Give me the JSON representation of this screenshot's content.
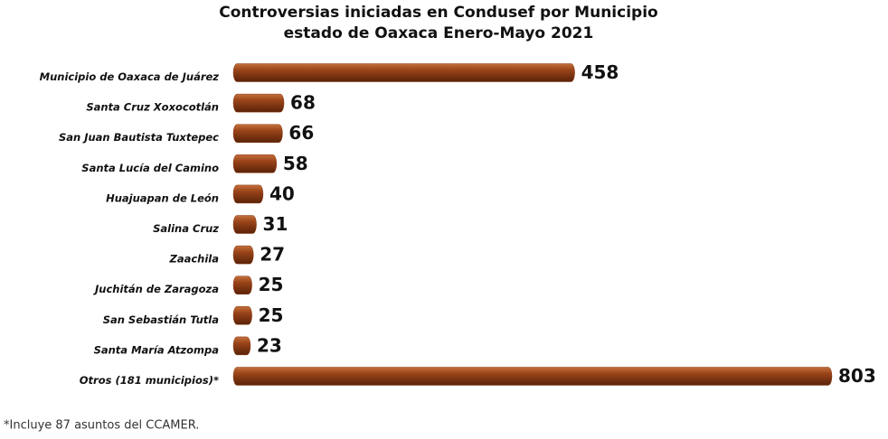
{
  "chart_data": {
    "type": "bar",
    "orientation": "horizontal",
    "title": [
      "Controversias iniciadas en Condusef por Municipio",
      "estado de Oaxaca Enero-Mayo 2021"
    ],
    "categories": [
      "Municipio de Oaxaca de Juárez",
      "Santa Cruz Xoxocotlán",
      "San Juan Bautista Tuxtepec",
      "Santa Lucía del Camino",
      "Huajuapan de León",
      "Salina Cruz",
      "Zaachila",
      "Juchitán de Zaragoza",
      "San Sebastián Tutla",
      "Santa María Atzompa",
      "Otros (181 municipios)*"
    ],
    "values": [
      458,
      68,
      66,
      58,
      40,
      31,
      27,
      25,
      25,
      23,
      803
    ],
    "color": "#8a3a12",
    "footnote": "*Incluye 87 asuntos del CCAMER."
  }
}
